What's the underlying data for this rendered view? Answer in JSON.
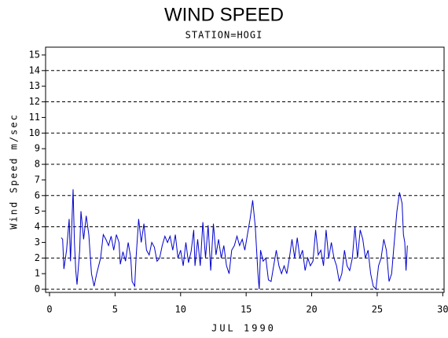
{
  "chart_data": {
    "type": "line",
    "title": "WIND SPEED",
    "subtitle": "STATION=HOGI",
    "y_label": "Wind Speed m/sec",
    "x_label": "JUL 1990",
    "xlim": [
      -0.3,
      30.1
    ],
    "xticks": [
      0,
      5,
      10,
      15,
      20,
      25,
      30
    ],
    "ylim": [
      -0.2,
      15.5
    ],
    "yticks": [
      0,
      1,
      2,
      3,
      4,
      5,
      6,
      7,
      8,
      9,
      10,
      11,
      12,
      13,
      14,
      15
    ],
    "ygrid": [
      0,
      2,
      4,
      6,
      8,
      10,
      12,
      14
    ],
    "grid_style": "dashed",
    "series": [
      {
        "name": "Wind Speed",
        "color": "#0000cc",
        "x": [
          0.9,
          1.0,
          1.1,
          1.3,
          1.5,
          1.6,
          1.8,
          1.9,
          2.0,
          2.1,
          2.3,
          2.4,
          2.6,
          2.8,
          3.0,
          3.2,
          3.4,
          3.6,
          3.9,
          4.1,
          4.3,
          4.5,
          4.7,
          4.9,
          5.1,
          5.3,
          5.4,
          5.6,
          5.8,
          6.0,
          6.2,
          6.3,
          6.5,
          6.6,
          6.8,
          7.0,
          7.2,
          7.4,
          7.6,
          7.8,
          8.0,
          8.2,
          8.4,
          8.6,
          8.8,
          9.0,
          9.2,
          9.4,
          9.6,
          9.8,
          10.0,
          10.2,
          10.4,
          10.6,
          10.8,
          11.0,
          11.1,
          11.3,
          11.5,
          11.7,
          11.9,
          12.1,
          12.3,
          12.5,
          12.7,
          12.9,
          13.1,
          13.3,
          13.5,
          13.7,
          13.9,
          14.1,
          14.3,
          14.5,
          14.7,
          14.9,
          15.1,
          15.3,
          15.5,
          15.7,
          15.9,
          16.0,
          16.1,
          16.3,
          16.5,
          16.7,
          16.9,
          17.1,
          17.3,
          17.5,
          17.7,
          17.9,
          18.1,
          18.3,
          18.5,
          18.7,
          18.9,
          19.1,
          19.3,
          19.5,
          19.7,
          19.9,
          20.1,
          20.3,
          20.5,
          20.7,
          20.9,
          21.1,
          21.3,
          21.5,
          21.7,
          21.9,
          22.1,
          22.3,
          22.5,
          22.7,
          22.9,
          23.1,
          23.3,
          23.5,
          23.7,
          23.9,
          24.1,
          24.3,
          24.5,
          24.7,
          24.9,
          25.1,
          25.3,
          25.5,
          25.7,
          25.9,
          26.1,
          26.3,
          26.5,
          26.7,
          26.9,
          27.0,
          27.1,
          27.2,
          27.3
        ],
        "values": [
          3.3,
          3.2,
          1.3,
          2.5,
          4.5,
          1.8,
          6.4,
          3.0,
          1.2,
          0.3,
          2.5,
          5.0,
          3.2,
          4.7,
          3.5,
          1.0,
          0.2,
          1.0,
          2.0,
          3.5,
          3.2,
          2.8,
          3.4,
          2.5,
          3.5,
          3.0,
          1.6,
          2.4,
          1.8,
          3.0,
          2.0,
          0.5,
          0.2,
          2.0,
          4.5,
          3.0,
          4.2,
          2.5,
          2.2,
          3.0,
          2.7,
          1.8,
          2.0,
          2.8,
          3.4,
          3.0,
          3.4,
          2.5,
          3.5,
          2.0,
          2.5,
          1.5,
          3.0,
          1.7,
          2.4,
          3.8,
          1.5,
          3.2,
          1.5,
          4.3,
          2.0,
          4.1,
          1.2,
          4.2,
          2.2,
          3.2,
          2.0,
          2.8,
          1.5,
          1.0,
          2.5,
          2.8,
          3.4,
          2.8,
          3.2,
          2.5,
          3.5,
          4.5,
          5.7,
          4.0,
          1.0,
          0.0,
          2.5,
          1.8,
          2.0,
          0.6,
          0.5,
          1.5,
          2.5,
          1.5,
          1.0,
          1.5,
          1.0,
          2.0,
          3.2,
          2.0,
          3.3,
          2.0,
          2.5,
          1.2,
          2.0,
          1.5,
          1.8,
          3.8,
          2.2,
          2.5,
          1.5,
          3.8,
          2.0,
          3.0,
          2.0,
          1.5,
          0.5,
          1.0,
          2.5,
          1.5,
          1.2,
          2.0,
          4.0,
          2.0,
          3.8,
          3.2,
          2.0,
          2.5,
          1.0,
          0.2,
          0.0,
          1.5,
          2.0,
          3.2,
          2.5,
          0.5,
          1.0,
          3.0,
          5.0,
          6.2,
          5.5,
          3.5,
          3.0,
          1.2,
          2.8
        ]
      }
    ]
  }
}
